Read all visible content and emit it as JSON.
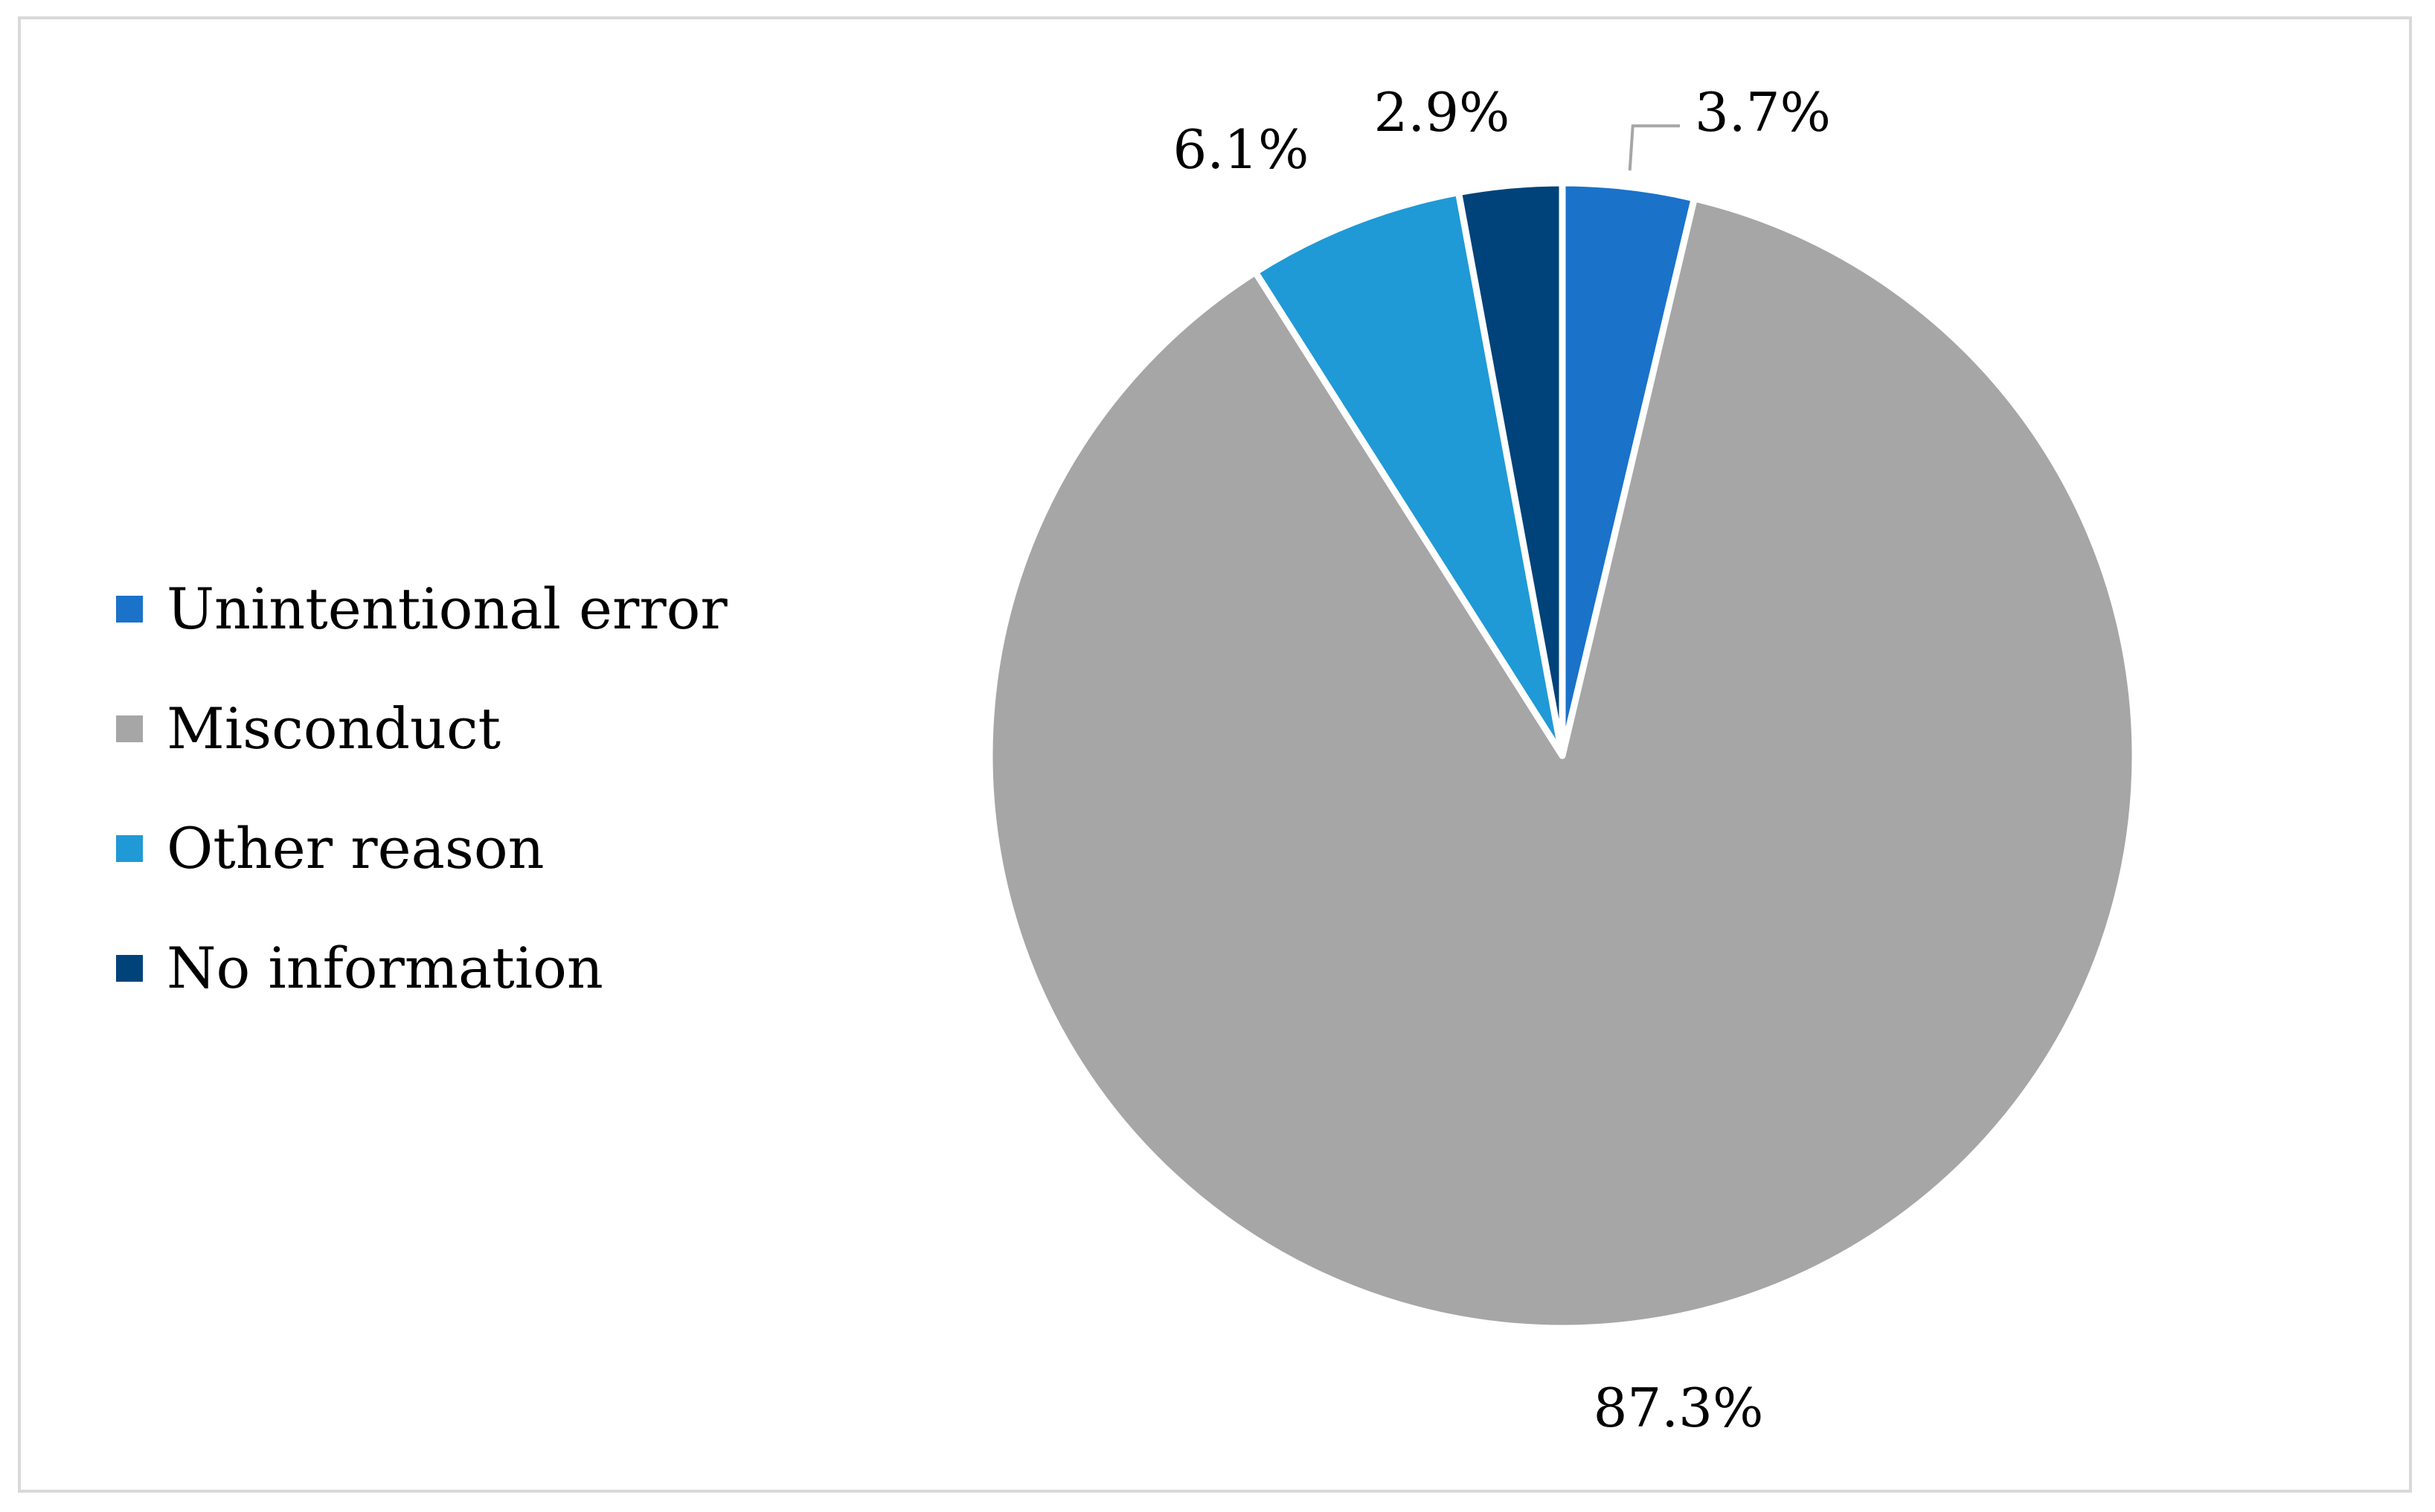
{
  "chart_data": {
    "type": "pie",
    "title": "",
    "legend_position": "left",
    "slices": [
      {
        "name": "Unintentional error",
        "value": 3.7,
        "label": "3.7%",
        "color": "#1a73c9"
      },
      {
        "name": "Misconduct",
        "value": 87.3,
        "label": "87.3%",
        "color": "#a6a6a6"
      },
      {
        "name": "Other reason",
        "value": 6.1,
        "label": "6.1%",
        "color": "#1f9ad6"
      },
      {
        "name": "No information",
        "value": 2.9,
        "label": "2.9%",
        "color": "#00427a"
      }
    ]
  }
}
